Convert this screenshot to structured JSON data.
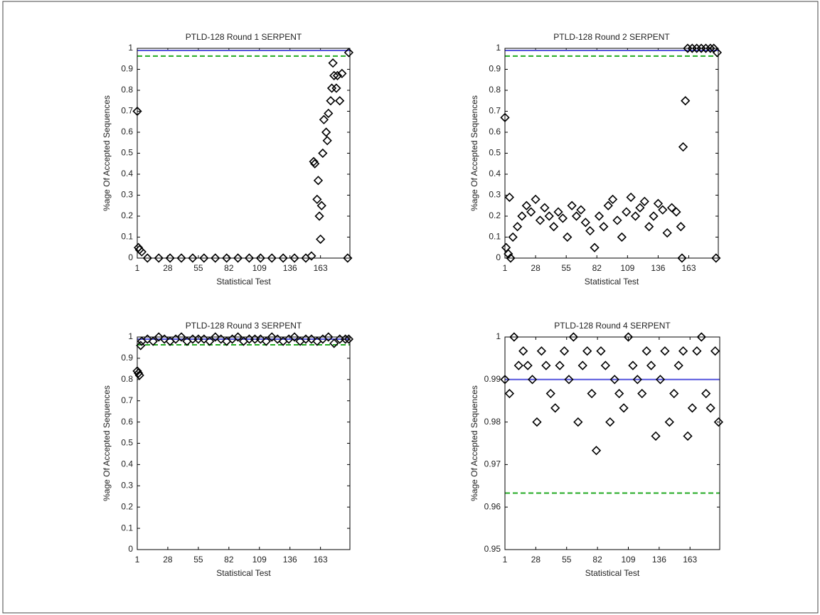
{
  "chart_data": [
    {
      "type": "scatter",
      "title": "PTLD-128 Round 1 SERPENT",
      "xlabel": "Statistical Test",
      "ylabel": "%age Of Accepted Sequences",
      "x": [
        1,
        2,
        3,
        5,
        10,
        20,
        30,
        40,
        50,
        60,
        70,
        80,
        90,
        100,
        110,
        120,
        130,
        140,
        150,
        155,
        157,
        158,
        160,
        161,
        162,
        163,
        164,
        165,
        166,
        168,
        169,
        170,
        172,
        173,
        174,
        175,
        177,
        178,
        180,
        182,
        187,
        188
      ],
      "values": [
        0.7,
        0.05,
        0.04,
        0.03,
        0,
        0,
        0,
        0,
        0,
        0,
        0,
        0,
        0,
        0,
        0,
        0,
        0,
        0,
        0,
        0.01,
        0.46,
        0.45,
        0.28,
        0.37,
        0.2,
        0.09,
        0.25,
        0.5,
        0.66,
        0.6,
        0.56,
        0.69,
        0.75,
        0.81,
        0.93,
        0.87,
        0.81,
        0.87,
        0.75,
        0.88,
        0,
        0.98
      ],
      "xlim": [
        1,
        189
      ],
      "ylim": [
        0,
        1
      ],
      "xticks": [
        1,
        28,
        55,
        82,
        109,
        136,
        163
      ],
      "yticks": [
        0,
        0.1,
        0.2,
        0.3,
        0.4,
        0.5,
        0.6,
        0.7,
        0.8,
        0.9,
        1
      ],
      "hlines": [
        {
          "value": 0.99,
          "color": "#5555dd",
          "dashed": false
        },
        {
          "value": 0.9633,
          "color": "#22aa22",
          "dashed": true
        }
      ]
    },
    {
      "type": "scatter",
      "title": "PTLD-128 Round 2 SERPENT",
      "xlabel": "Statistical Test",
      "ylabel": "%age Of Accepted Sequences",
      "x": [
        1,
        2,
        4,
        5,
        6,
        8,
        12,
        16,
        20,
        24,
        28,
        32,
        36,
        40,
        44,
        48,
        52,
        56,
        60,
        64,
        68,
        72,
        76,
        80,
        84,
        88,
        92,
        96,
        100,
        104,
        108,
        112,
        116,
        120,
        124,
        128,
        132,
        136,
        140,
        144,
        148,
        152,
        156,
        157,
        158,
        160,
        162,
        166,
        170,
        174,
        178,
        182,
        185,
        187,
        188
      ],
      "values": [
        0.67,
        0.05,
        0.02,
        0.29,
        0,
        0.1,
        0.15,
        0.2,
        0.25,
        0.22,
        0.28,
        0.18,
        0.24,
        0.2,
        0.15,
        0.22,
        0.19,
        0.1,
        0.25,
        0.2,
        0.23,
        0.17,
        0.13,
        0.05,
        0.2,
        0.15,
        0.25,
        0.28,
        0.18,
        0.1,
        0.22,
        0.29,
        0.2,
        0.24,
        0.27,
        0.15,
        0.2,
        0.26,
        0.23,
        0.12,
        0.24,
        0.22,
        0.15,
        0,
        0.53,
        0.75,
        1,
        1,
        1,
        1,
        1,
        1,
        1,
        0,
        0.98
      ],
      "xlim": [
        1,
        189
      ],
      "ylim": [
        0,
        1
      ],
      "xticks": [
        1,
        28,
        55,
        82,
        109,
        136,
        163
      ],
      "yticks": [
        0,
        0.1,
        0.2,
        0.3,
        0.4,
        0.5,
        0.6,
        0.7,
        0.8,
        0.9,
        1
      ],
      "hlines": [
        {
          "value": 0.99,
          "color": "#5555dd",
          "dashed": false
        },
        {
          "value": 0.9633,
          "color": "#22aa22",
          "dashed": true
        }
      ]
    },
    {
      "type": "scatter",
      "title": "PTLD-128 Round 3 SERPENT",
      "xlabel": "Statistical Test",
      "ylabel": "%age Of Accepted Sequences",
      "x": [
        1,
        2,
        3,
        4,
        5,
        10,
        15,
        20,
        25,
        30,
        35,
        40,
        45,
        50,
        55,
        60,
        65,
        70,
        75,
        80,
        85,
        90,
        95,
        100,
        105,
        110,
        115,
        120,
        125,
        130,
        135,
        140,
        145,
        150,
        155,
        160,
        165,
        170,
        175,
        180,
        185,
        188
      ],
      "values": [
        0.84,
        0.83,
        0.82,
        0.96,
        0.98,
        0.99,
        0.98,
        1,
        0.99,
        0.98,
        0.99,
        1,
        0.98,
        0.99,
        0.99,
        0.99,
        0.98,
        1,
        0.99,
        0.98,
        0.99,
        1,
        0.98,
        0.99,
        0.99,
        0.99,
        0.98,
        1,
        0.99,
        0.98,
        0.99,
        1,
        0.98,
        0.99,
        0.99,
        0.98,
        0.99,
        1,
        0.97,
        0.99,
        0.99,
        0.99
      ],
      "xlim": [
        1,
        189
      ],
      "ylim": [
        0,
        1
      ],
      "xticks": [
        1,
        28,
        55,
        82,
        109,
        136,
        163
      ],
      "yticks": [
        0,
        0.1,
        0.2,
        0.3,
        0.4,
        0.5,
        0.6,
        0.7,
        0.8,
        0.9,
        1
      ],
      "hlines": [
        {
          "value": 0.99,
          "color": "#5555dd",
          "dashed": false
        },
        {
          "value": 0.9633,
          "color": "#22aa22",
          "dashed": true
        }
      ]
    },
    {
      "type": "scatter",
      "title": "PTLD-128 Round 4 SERPENT",
      "xlabel": "Statistical Test",
      "ylabel": "%age Of Accepted Sequences",
      "x": [
        1,
        5,
        9,
        13,
        17,
        21,
        25,
        29,
        33,
        37,
        41,
        45,
        49,
        53,
        57,
        61,
        65,
        69,
        73,
        77,
        81,
        85,
        89,
        93,
        97,
        101,
        105,
        109,
        113,
        117,
        121,
        125,
        129,
        133,
        137,
        141,
        145,
        149,
        153,
        157,
        161,
        165,
        169,
        173,
        177,
        181,
        185,
        188
      ],
      "values": [
        0.99,
        0.9867,
        1,
        0.9933,
        0.9967,
        0.9933,
        0.99,
        0.98,
        0.9967,
        0.9933,
        0.9867,
        0.9833,
        0.9933,
        0.9967,
        0.99,
        1,
        0.98,
        0.9933,
        0.9967,
        0.9867,
        0.9733,
        0.9967,
        0.9933,
        0.98,
        0.99,
        0.9867,
        0.9833,
        1,
        0.9933,
        0.99,
        0.9867,
        0.9967,
        0.9933,
        0.9767,
        0.99,
        0.9967,
        0.98,
        0.9867,
        0.9933,
        0.9967,
        0.9767,
        0.9833,
        0.9967,
        1,
        0.9867,
        0.9833,
        0.9967,
        0.98
      ],
      "xlim": [
        1,
        189
      ],
      "ylim": [
        0.95,
        1
      ],
      "xticks": [
        1,
        28,
        55,
        82,
        109,
        136,
        163
      ],
      "yticks": [
        0.95,
        0.96,
        0.97,
        0.98,
        0.99,
        1
      ],
      "hlines": [
        {
          "value": 0.99,
          "color": "#5555dd",
          "dashed": false
        },
        {
          "value": 0.9633,
          "color": "#22aa22",
          "dashed": true
        }
      ]
    }
  ]
}
